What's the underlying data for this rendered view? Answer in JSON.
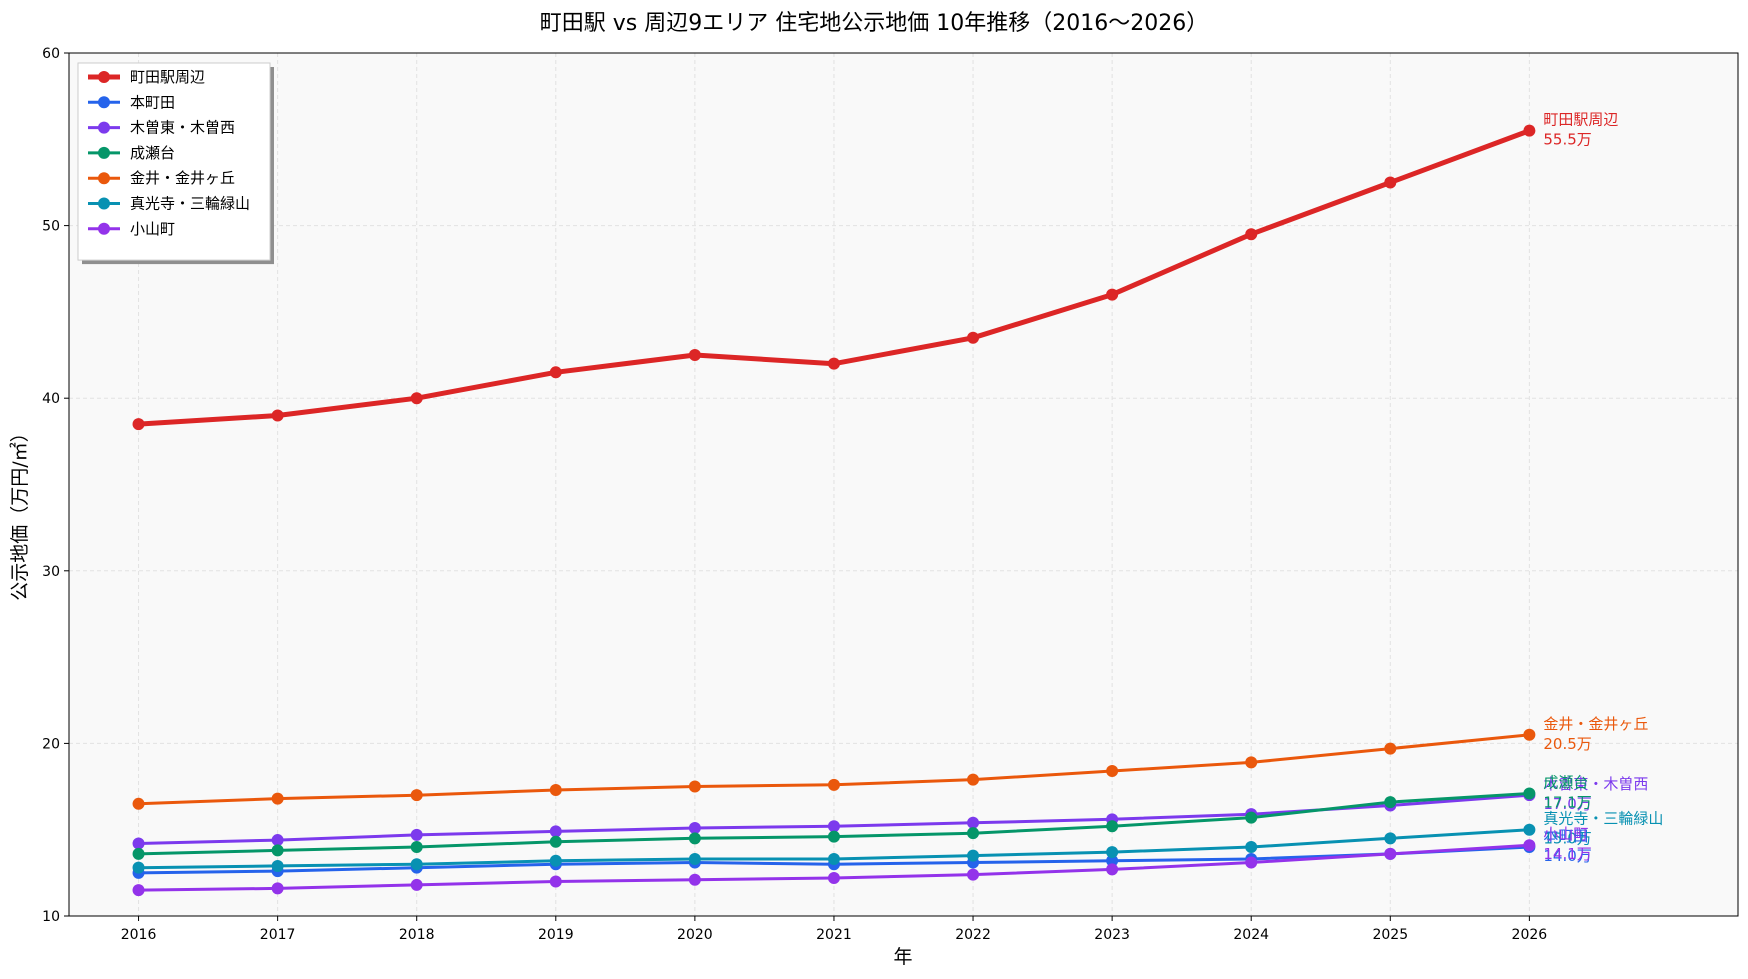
{
  "chart_data": {
    "type": "line",
    "title": "町田駅 vs 周辺9エリア 住宅地公示地価 10年推移（2016〜2026）",
    "xlabel": "年",
    "ylabel": "公示地価（万円/㎡）",
    "x": [
      2016,
      2017,
      2018,
      2019,
      2020,
      2021,
      2022,
      2023,
      2024,
      2025,
      2026
    ],
    "xlim": [
      2015.5,
      2027.5
    ],
    "ylim": [
      10,
      60
    ],
    "yticks": [
      10,
      20,
      30,
      40,
      50,
      60
    ],
    "grid": true,
    "legend_position": "top-left",
    "series": [
      {
        "name": "町田駅周辺",
        "color": "#dc2626",
        "emphasis": true,
        "end_value_label": "55.5万",
        "values": [
          38.5,
          39.0,
          40.0,
          41.5,
          42.5,
          42.0,
          43.5,
          46.0,
          49.5,
          52.5,
          55.5
        ]
      },
      {
        "name": "本町田",
        "color": "#2563eb",
        "end_value_label": "14.0万",
        "values": [
          12.5,
          12.6,
          12.8,
          13.0,
          13.1,
          13.0,
          13.1,
          13.2,
          13.3,
          13.6,
          14.0
        ]
      },
      {
        "name": "木曽東・木曽西",
        "color": "#7c3aed",
        "end_value_label": "17.0万",
        "values": [
          14.2,
          14.4,
          14.7,
          14.9,
          15.1,
          15.2,
          15.4,
          15.6,
          15.9,
          16.4,
          17.0
        ]
      },
      {
        "name": "成瀬台",
        "color": "#059669",
        "end_value_label": "17.1万",
        "values": [
          13.6,
          13.8,
          14.0,
          14.3,
          14.5,
          14.6,
          14.8,
          15.2,
          15.7,
          16.6,
          17.1
        ]
      },
      {
        "name": "金井・金井ヶ丘",
        "color": "#ea580c",
        "end_value_label": "20.5万",
        "values": [
          16.5,
          16.8,
          17.0,
          17.3,
          17.5,
          17.6,
          17.9,
          18.4,
          18.9,
          19.7,
          20.5
        ]
      },
      {
        "name": "真光寺・三輪緑山",
        "color": "#0891b2",
        "end_value_label": "15.0万",
        "values": [
          12.8,
          12.9,
          13.0,
          13.2,
          13.3,
          13.3,
          13.5,
          13.7,
          14.0,
          14.5,
          15.0
        ]
      },
      {
        "name": "小山町",
        "color": "#9333ea",
        "end_value_label": "14.1万",
        "values": [
          11.5,
          11.6,
          11.8,
          12.0,
          12.1,
          12.2,
          12.4,
          12.7,
          13.1,
          13.6,
          14.1
        ]
      }
    ]
  }
}
